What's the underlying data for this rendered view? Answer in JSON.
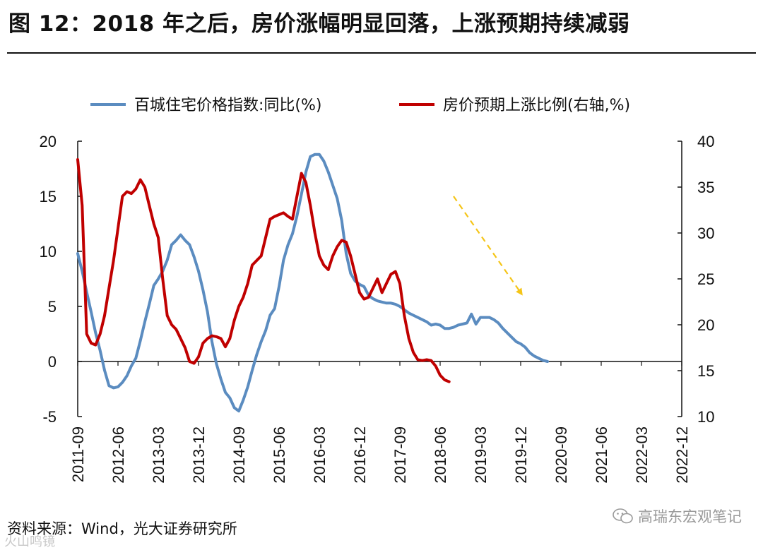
{
  "header": {
    "title": "图 12：2018 年之后，房价涨幅明显回落，上涨预期持续减弱"
  },
  "footer": {
    "source": "资料来源：Wind，光大证券研究所",
    "watermark": "高瑞东宏观笔记",
    "watermark_icon": "wechat-icon",
    "watermark_left": "火山鸣镜"
  },
  "colors": {
    "series_blue": "#5b8cc0",
    "series_red": "#c00000",
    "trend_arrow": "#f5c518"
  },
  "chart_data": {
    "type": "line",
    "title": "图 12：2018 年之后，房价涨幅明显回落，上涨预期持续减弱",
    "x_tick_labels": [
      "2011-09",
      "2012-06",
      "2013-03",
      "2013-12",
      "2014-09",
      "2015-06",
      "2016-03",
      "2016-12",
      "2017-09",
      "2018-06",
      "2019-03",
      "2019-12",
      "2020-09",
      "2021-06",
      "2022-03",
      "2022-12"
    ],
    "x_range": [
      "2011-09",
      "2022-12"
    ],
    "y_left": {
      "range": [
        -5,
        20
      ],
      "ticks": [
        -5,
        0,
        5,
        10,
        15,
        20
      ],
      "tick_labels": [
        "-5",
        "0",
        "5",
        "10",
        "15",
        "20"
      ]
    },
    "y_right": {
      "range": [
        10,
        40
      ],
      "ticks": [
        10,
        15,
        20,
        25,
        30,
        35,
        40
      ],
      "tick_labels": [
        "10",
        "15",
        "20",
        "25",
        "30",
        "35",
        "40"
      ]
    },
    "legend_position": "top",
    "series": [
      {
        "name": "百城住宅价格指数:同比(%)",
        "axis": "left",
        "color": "#5b8cc0",
        "points": [
          [
            "2011-09",
            9.8
          ],
          [
            "2011-10",
            8.2
          ],
          [
            "2011-11",
            6.3
          ],
          [
            "2011-12",
            4.5
          ],
          [
            "2012-01",
            2.6
          ],
          [
            "2012-02",
            1.0
          ],
          [
            "2012-03",
            -0.8
          ],
          [
            "2012-04",
            -2.2
          ],
          [
            "2012-05",
            -2.4
          ],
          [
            "2012-06",
            -2.3
          ],
          [
            "2012-07",
            -1.9
          ],
          [
            "2012-08",
            -1.3
          ],
          [
            "2012-09",
            -0.4
          ],
          [
            "2012-10",
            0.3
          ],
          [
            "2012-11",
            1.9
          ],
          [
            "2012-12",
            3.6
          ],
          [
            "2013-01",
            5.2
          ],
          [
            "2013-02",
            6.9
          ],
          [
            "2013-03",
            7.5
          ],
          [
            "2013-04",
            8.2
          ],
          [
            "2013-05",
            9.2
          ],
          [
            "2013-06",
            10.6
          ],
          [
            "2013-07",
            11.0
          ],
          [
            "2013-08",
            11.5
          ],
          [
            "2013-09",
            11.0
          ],
          [
            "2013-10",
            10.6
          ],
          [
            "2013-11",
            9.5
          ],
          [
            "2013-12",
            8.2
          ],
          [
            "2014-01",
            6.5
          ],
          [
            "2014-02",
            4.5
          ],
          [
            "2014-03",
            1.8
          ],
          [
            "2014-04",
            -0.2
          ],
          [
            "2014-05",
            -1.6
          ],
          [
            "2014-06",
            -2.8
          ],
          [
            "2014-07",
            -3.3
          ],
          [
            "2014-08",
            -4.2
          ],
          [
            "2014-09",
            -4.5
          ],
          [
            "2014-10",
            -3.5
          ],
          [
            "2014-11",
            -2.3
          ],
          [
            "2014-12",
            -0.8
          ],
          [
            "2015-01",
            0.6
          ],
          [
            "2015-02",
            1.8
          ],
          [
            "2015-03",
            2.8
          ],
          [
            "2015-04",
            4.2
          ],
          [
            "2015-05",
            4.8
          ],
          [
            "2015-06",
            6.8
          ],
          [
            "2015-07",
            9.2
          ],
          [
            "2015-08",
            10.6
          ],
          [
            "2015-09",
            11.6
          ],
          [
            "2015-10",
            13.2
          ],
          [
            "2015-11",
            15.2
          ],
          [
            "2015-12",
            17.2
          ],
          [
            "2016-01",
            18.6
          ],
          [
            "2016-02",
            18.8
          ],
          [
            "2016-03",
            18.8
          ],
          [
            "2016-04",
            18.2
          ],
          [
            "2016-05",
            17.2
          ],
          [
            "2016-06",
            16.0
          ],
          [
            "2016-07",
            14.8
          ],
          [
            "2016-08",
            12.8
          ],
          [
            "2016-09",
            9.8
          ],
          [
            "2016-10",
            8.0
          ],
          [
            "2016-11",
            7.3
          ],
          [
            "2016-12",
            7.0
          ],
          [
            "2017-01",
            6.8
          ],
          [
            "2017-02",
            6.0
          ],
          [
            "2017-03",
            5.7
          ],
          [
            "2017-04",
            5.5
          ],
          [
            "2017-05",
            5.4
          ],
          [
            "2017-06",
            5.3
          ],
          [
            "2017-07",
            5.3
          ],
          [
            "2017-08",
            5.2
          ],
          [
            "2017-09",
            5.0
          ],
          [
            "2017-10",
            4.7
          ],
          [
            "2017-11",
            4.4
          ],
          [
            "2017-12",
            4.2
          ],
          [
            "2018-01",
            4.0
          ],
          [
            "2018-02",
            3.8
          ],
          [
            "2018-03",
            3.6
          ],
          [
            "2018-04",
            3.3
          ],
          [
            "2018-05",
            3.4
          ],
          [
            "2018-06",
            3.3
          ],
          [
            "2018-07",
            3.0
          ],
          [
            "2018-08",
            3.0
          ],
          [
            "2018-09",
            3.1
          ],
          [
            "2018-10",
            3.3
          ],
          [
            "2018-11",
            3.4
          ],
          [
            "2018-12",
            3.5
          ],
          [
            "2019-01",
            4.3
          ],
          [
            "2019-02",
            3.4
          ],
          [
            "2019-03",
            4.0
          ],
          [
            "2019-04",
            4.0
          ],
          [
            "2019-05",
            4.0
          ],
          [
            "2019-06",
            3.8
          ],
          [
            "2019-07",
            3.5
          ],
          [
            "2019-08",
            3.0
          ],
          [
            "2019-09",
            2.6
          ],
          [
            "2019-10",
            2.2
          ],
          [
            "2019-11",
            1.8
          ],
          [
            "2019-12",
            1.6
          ],
          [
            "2020-01",
            1.3
          ],
          [
            "2020-02",
            0.8
          ],
          [
            "2020-03",
            0.5
          ],
          [
            "2020-04",
            0.3
          ],
          [
            "2020-05",
            0.1
          ],
          [
            "2020-06",
            0.0
          ]
        ]
      },
      {
        "name": "房价预期上涨比例(右轴,%)",
        "axis": "right",
        "color": "#c00000",
        "points": [
          [
            "2011-09",
            38.0
          ],
          [
            "2011-10",
            33.0
          ],
          [
            "2011-11",
            19.0
          ],
          [
            "2011-12",
            18.0
          ],
          [
            "2012-01",
            17.8
          ],
          [
            "2012-02",
            19.0
          ],
          [
            "2012-03",
            21.0
          ],
          [
            "2012-04",
            24.0
          ],
          [
            "2012-05",
            27.0
          ],
          [
            "2012-06",
            30.5
          ],
          [
            "2012-07",
            34.0
          ],
          [
            "2012-08",
            34.5
          ],
          [
            "2012-09",
            34.3
          ],
          [
            "2012-10",
            34.8
          ],
          [
            "2012-11",
            35.8
          ],
          [
            "2012-12",
            35.0
          ],
          [
            "2013-01",
            33.0
          ],
          [
            "2013-02",
            31.0
          ],
          [
            "2013-03",
            29.5
          ],
          [
            "2013-04",
            25.0
          ],
          [
            "2013-05",
            21.0
          ],
          [
            "2013-06",
            20.0
          ],
          [
            "2013-07",
            19.5
          ],
          [
            "2013-08",
            18.5
          ],
          [
            "2013-09",
            17.5
          ],
          [
            "2013-10",
            16.0
          ],
          [
            "2013-11",
            15.8
          ],
          [
            "2013-12",
            16.5
          ],
          [
            "2014-01",
            18.0
          ],
          [
            "2014-02",
            18.5
          ],
          [
            "2014-03",
            18.8
          ],
          [
            "2014-04",
            18.7
          ],
          [
            "2014-05",
            18.5
          ],
          [
            "2014-06",
            17.6
          ],
          [
            "2014-07",
            18.5
          ],
          [
            "2014-08",
            20.5
          ],
          [
            "2014-09",
            22.0
          ],
          [
            "2014-10",
            23.0
          ],
          [
            "2014-11",
            24.5
          ],
          [
            "2014-12",
            26.5
          ],
          [
            "2015-01",
            27.0
          ],
          [
            "2015-02",
            27.5
          ],
          [
            "2015-03",
            29.5
          ],
          [
            "2015-04",
            31.5
          ],
          [
            "2015-05",
            31.8
          ],
          [
            "2015-06",
            32.0
          ],
          [
            "2015-07",
            32.2
          ],
          [
            "2015-08",
            31.8
          ],
          [
            "2015-09",
            31.5
          ],
          [
            "2015-10",
            34.0
          ],
          [
            "2015-11",
            36.5
          ],
          [
            "2015-12",
            35.5
          ],
          [
            "2016-01",
            33.0
          ],
          [
            "2016-02",
            30.0
          ],
          [
            "2016-03",
            27.5
          ],
          [
            "2016-04",
            26.5
          ],
          [
            "2016-05",
            26.0
          ],
          [
            "2016-06",
            27.5
          ],
          [
            "2016-07",
            28.5
          ],
          [
            "2016-08",
            29.2
          ],
          [
            "2016-09",
            29.0
          ],
          [
            "2016-10",
            27.5
          ],
          [
            "2016-11",
            25.5
          ],
          [
            "2016-12",
            23.5
          ],
          [
            "2017-01",
            22.8
          ],
          [
            "2017-02",
            23.0
          ],
          [
            "2017-03",
            24.0
          ],
          [
            "2017-04",
            25.0
          ],
          [
            "2017-05",
            23.5
          ],
          [
            "2017-06",
            24.5
          ],
          [
            "2017-07",
            25.5
          ],
          [
            "2017-08",
            25.8
          ],
          [
            "2017-09",
            24.5
          ],
          [
            "2017-10",
            21.0
          ],
          [
            "2017-11",
            18.5
          ],
          [
            "2017-12",
            17.0
          ],
          [
            "2018-01",
            16.2
          ],
          [
            "2018-02",
            16.1
          ],
          [
            "2018-03",
            16.2
          ],
          [
            "2018-04",
            16.1
          ],
          [
            "2018-05",
            15.5
          ],
          [
            "2018-06",
            14.5
          ],
          [
            "2018-07",
            14.0
          ],
          [
            "2018-08",
            13.8
          ]
        ]
      }
    ],
    "annotations": [
      {
        "type": "arrow",
        "style": "dashed",
        "from": [
          "2018-09",
          34.0
        ],
        "to": [
          "2019-12",
          23.5
        ],
        "axis": "right",
        "color": "#f5c518",
        "meaning": "下降趋势"
      }
    ]
  }
}
